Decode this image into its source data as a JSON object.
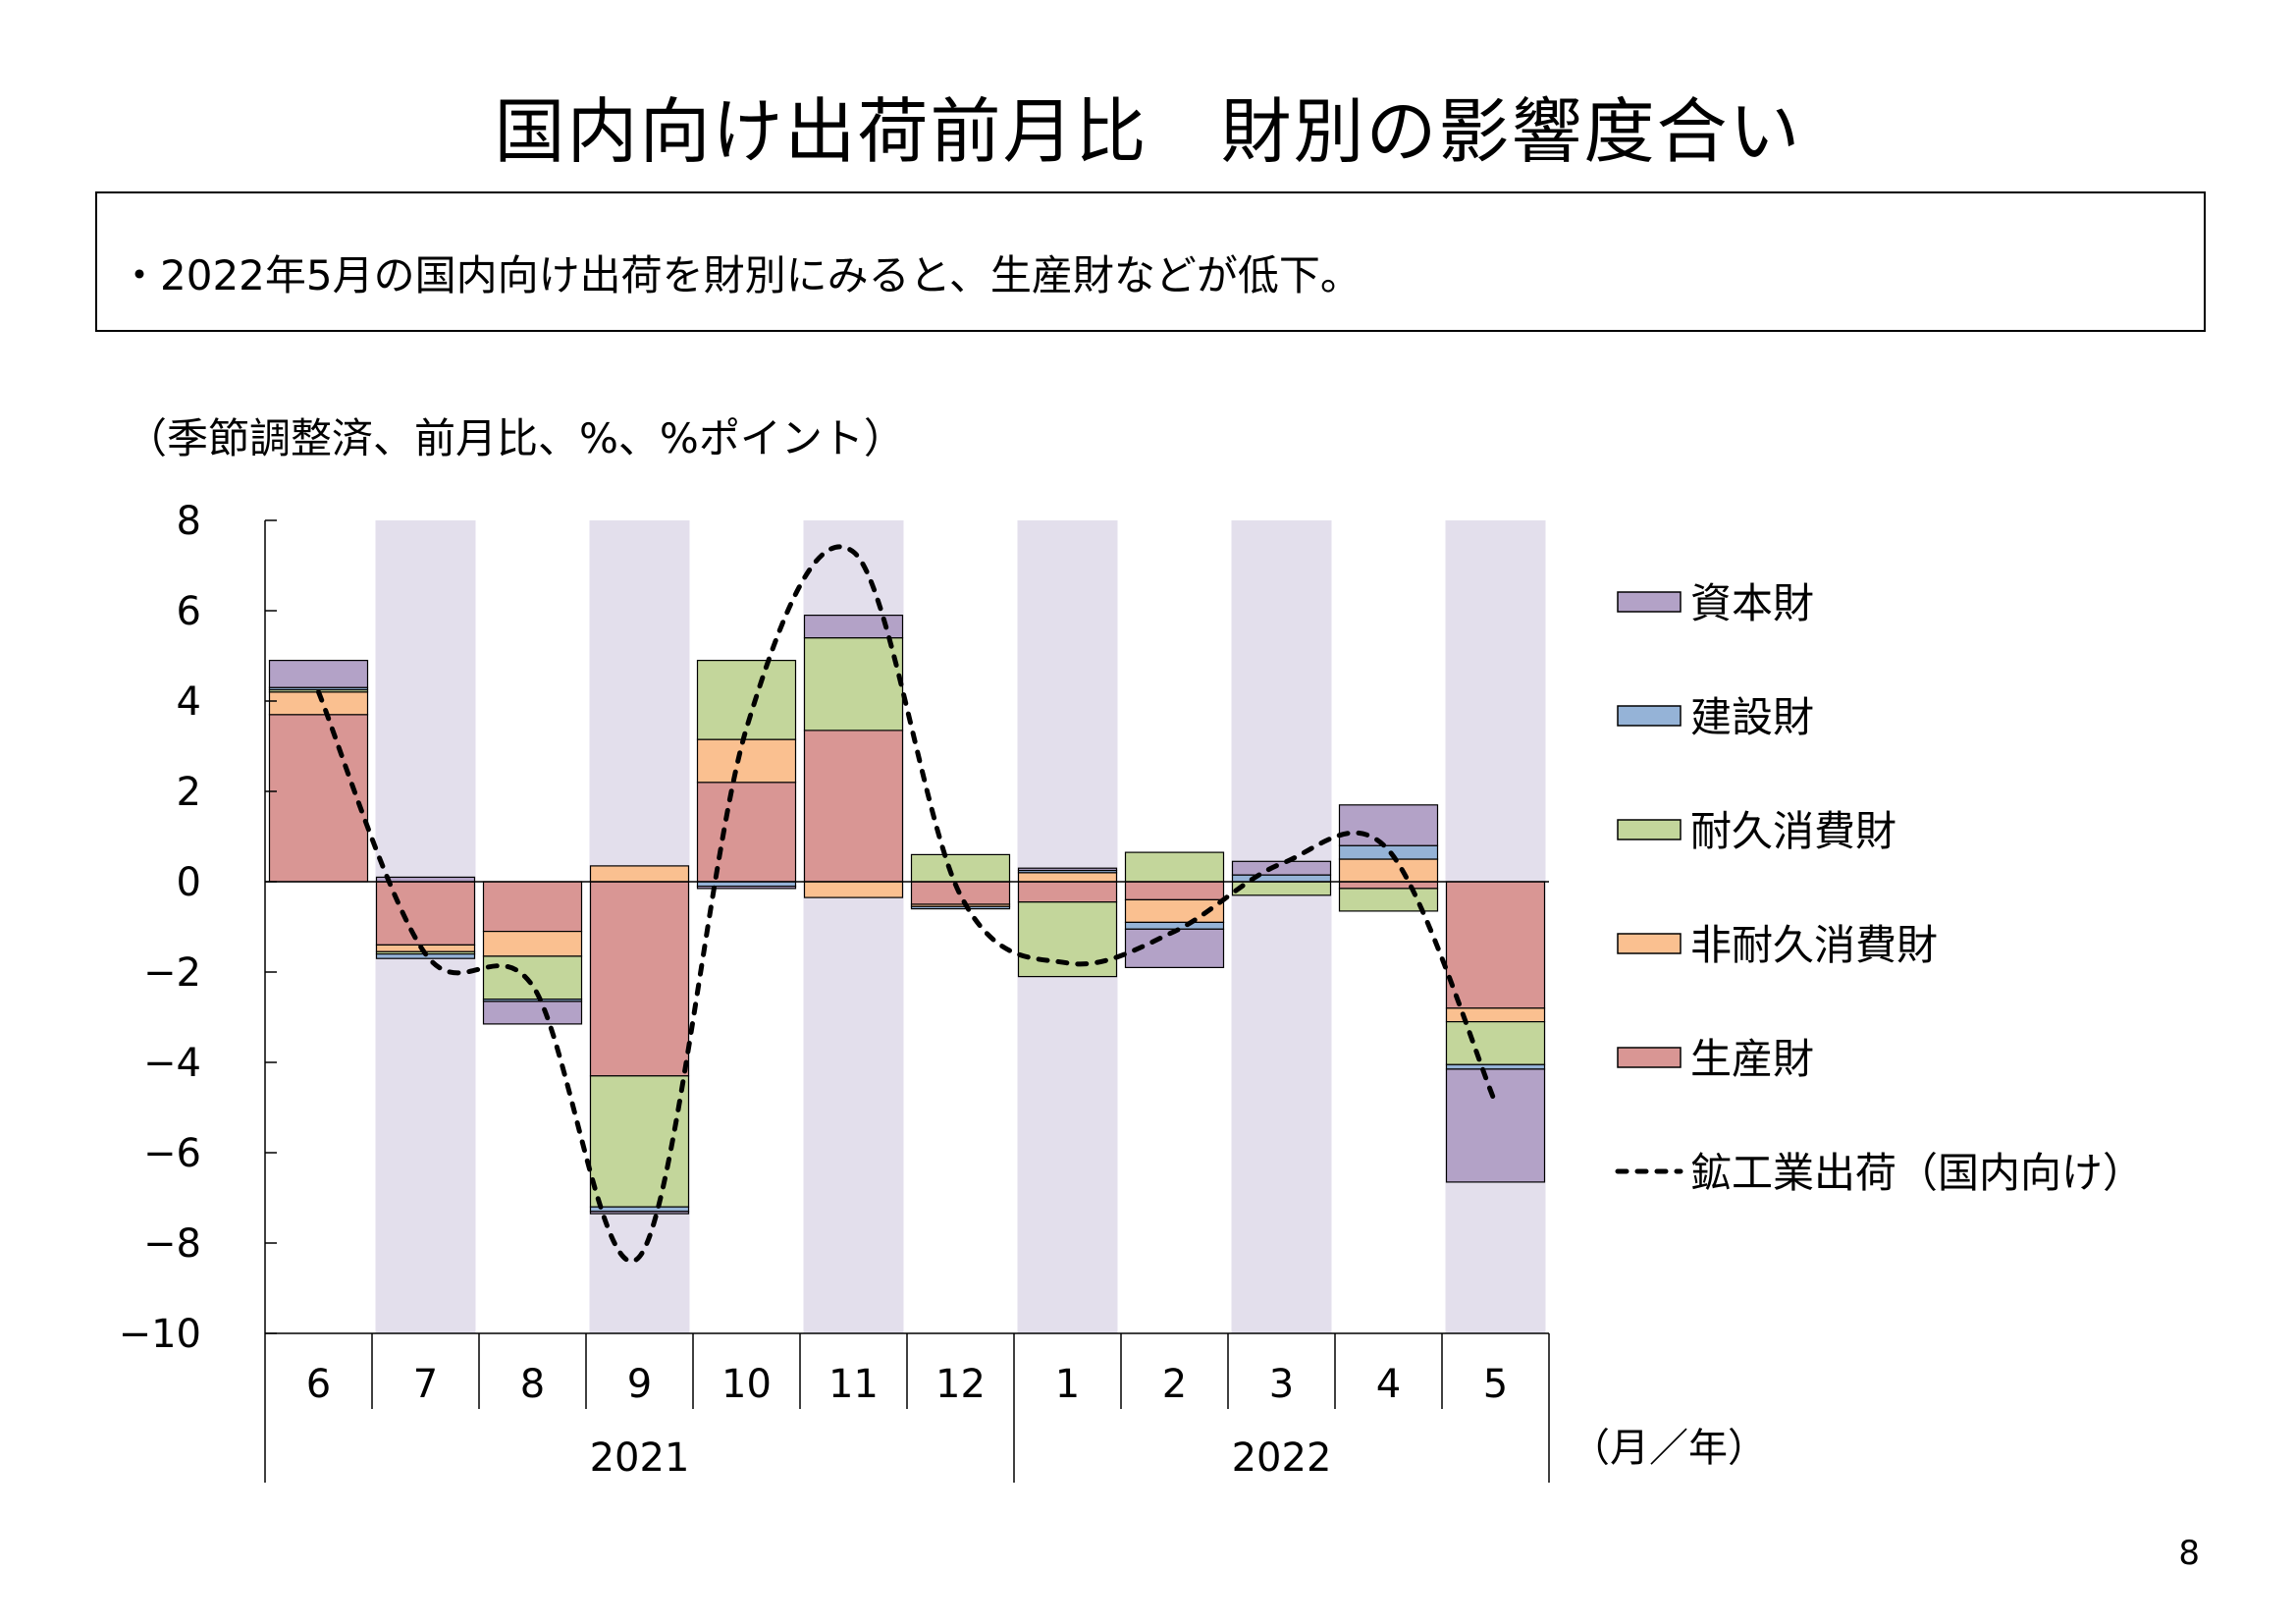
{
  "header": {
    "title": "国内向け出荷前月比　財別の影響度合い"
  },
  "summary": {
    "text": "・2022年5月の国内向け出荷を財別にみると、生産財などが低下。"
  },
  "unit_note": "（季節調整済、前月比、%、%ポイント）",
  "page_number": "8",
  "chart_data": {
    "type": "bar",
    "stacked": true,
    "categories": [
      "6",
      "7",
      "8",
      "9",
      "10",
      "11",
      "12",
      "1",
      "2",
      "3",
      "4",
      "5"
    ],
    "year_labels": [
      {
        "label": "2021",
        "from": 0,
        "to": 6
      },
      {
        "label": "2022",
        "from": 7,
        "to": 11
      }
    ],
    "axis_unit_label": "（月／年）",
    "ylim": [
      -10,
      8
    ],
    "yticks": [
      8,
      6,
      4,
      2,
      0,
      -2,
      -4,
      -6,
      -8,
      -10
    ],
    "ytick_labels": [
      "8",
      "6",
      "4",
      "2",
      "0",
      "−2",
      "−4",
      "−6",
      "−8",
      "−10"
    ],
    "shaded_categories": [
      1,
      3,
      5,
      7,
      9,
      11
    ],
    "shade_color": "#e3dfec",
    "series": [
      {
        "name": "生産財",
        "color": "#d99694",
        "values": [
          3.7,
          -1.4,
          -1.1,
          -4.3,
          2.2,
          3.35,
          -0.5,
          -0.45,
          -0.4,
          0.0,
          -0.15,
          -2.8
        ]
      },
      {
        "name": "非耐久消費財",
        "color": "#fac090",
        "values": [
          0.5,
          -0.15,
          -0.55,
          0.35,
          0.95,
          -0.35,
          -0.05,
          0.2,
          -0.5,
          0.0,
          0.5,
          -0.3
        ]
      },
      {
        "name": "耐久消費財",
        "color": "#c3d69b",
        "values": [
          0.05,
          -0.05,
          -0.95,
          -2.9,
          1.75,
          2.05,
          0.6,
          -1.65,
          0.65,
          -0.3,
          -0.5,
          -0.95
        ]
      },
      {
        "name": "建設財",
        "color": "#95b3d7",
        "values": [
          0.05,
          -0.1,
          -0.05,
          -0.1,
          -0.1,
          0.0,
          -0.05,
          0.05,
          -0.15,
          0.15,
          0.3,
          -0.1
        ]
      },
      {
        "name": "資本財",
        "color": "#b3a2c7",
        "values": [
          0.6,
          0.1,
          -0.5,
          -0.05,
          -0.05,
          0.5,
          0.0,
          0.05,
          -0.85,
          0.3,
          0.9,
          -2.5
        ]
      }
    ],
    "line": {
      "name": "鉱工業出荷（国内向け）",
      "color": "#000000",
      "values": [
        4.2,
        -1.6,
        -2.3,
        -8.3,
        3.4,
        7.3,
        -0.3,
        -1.8,
        -1.1,
        0.4,
        0.7,
        -4.9
      ]
    },
    "legend": {
      "position": "right",
      "order": [
        "資本財",
        "建設財",
        "耐久消費財",
        "非耐久消費財",
        "生産財",
        "鉱工業出荷（国内向け）"
      ]
    }
  }
}
